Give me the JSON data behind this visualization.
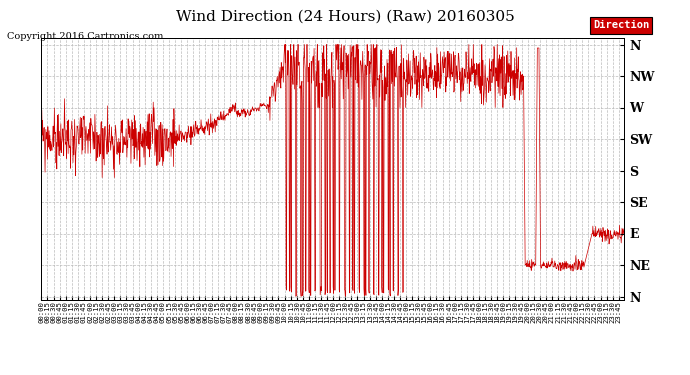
{
  "title": "Wind Direction (24 Hours) (Raw) 20160305",
  "copyright": "Copyright 2016 Cartronics.com",
  "legend_label": "Direction",
  "legend_bg": "#cc0000",
  "legend_text_color": "#ffffff",
  "line_color": "#cc0000",
  "bg_color": "#ffffff",
  "grid_color": "#bbbbbb",
  "ytick_labels_right": [
    "N",
    "NW",
    "W",
    "SW",
    "S",
    "SE",
    "E",
    "NE",
    "N"
  ],
  "ytick_values": [
    360,
    315,
    270,
    225,
    180,
    135,
    90,
    45,
    0
  ],
  "ylim": [
    -5,
    370
  ],
  "ylabel_fontsize": 9,
  "title_fontsize": 11,
  "copyright_fontsize": 7
}
